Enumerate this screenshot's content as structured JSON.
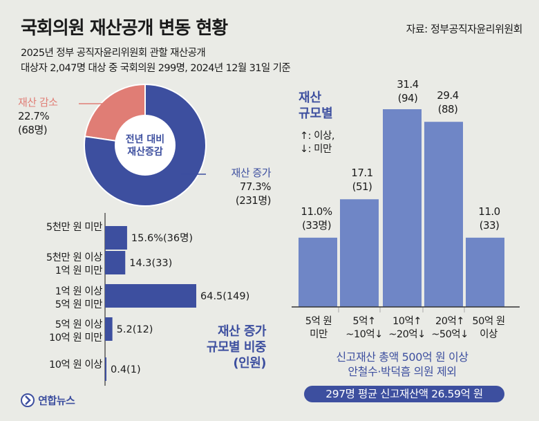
{
  "header": {
    "title": "국회의원 재산공개 변동 현황",
    "source": "자료: 정부공직자윤리위원회",
    "subtitle_line1": "2025년 정부 공직자윤리위원회 관할 재산공개",
    "subtitle_line2": "대상자 2,047명 대상 중 국회의원 299명, 2024년 12월 31일 기준"
  },
  "chart_data": [
    {
      "type": "pie",
      "title": "전년 대비 재산증감",
      "title_line1": "전년 대비",
      "title_line2": "재산증감",
      "slices": [
        {
          "name": "재산 감소",
          "value": 22.7,
          "value_label": "22.7%",
          "count_label": "(68명)",
          "color": "#e07d75"
        },
        {
          "name": "재산 증가",
          "value": 77.3,
          "value_label": "77.3%",
          "count_label": "(231명)",
          "color": "#3d4f9f"
        }
      ]
    },
    {
      "type": "bar",
      "orientation": "horizontal",
      "title": "재산 증가 규모별 비중 (인원)",
      "title_line1": "재산 증가",
      "title_line2": "규모별 비중",
      "title_line3": "(인원)",
      "unit": "%",
      "color": "#3d4f9f",
      "xlim": [
        0,
        64.5
      ],
      "categories": [
        {
          "line1": "5천만 원 미만",
          "line2": ""
        },
        {
          "line1": "5천만 원 이상",
          "line2": "1억 원 미만"
        },
        {
          "line1": "1억 원 이상",
          "line2": "5억 원 미만"
        },
        {
          "line1": "5억 원 이상",
          "line2": "10억 원 미만"
        },
        {
          "line1": "10억 원 이상",
          "line2": ""
        }
      ],
      "values": [
        15.6,
        14.3,
        64.5,
        5.2,
        0.4
      ],
      "value_labels": [
        "15.6%(36명)",
        "14.3(33)",
        "64.5(149)",
        "5.2(12)",
        "0.4(1)"
      ]
    },
    {
      "type": "bar",
      "orientation": "vertical",
      "title": "재산 규모별",
      "title_line1": "재산",
      "title_line2": "규모별",
      "legend_line1": "↑: 이상,",
      "legend_line2": "↓: 미만",
      "unit": "%",
      "color": "#6f86c6",
      "ylim": [
        0,
        31.4
      ],
      "categories": [
        {
          "line1": "5억 원",
          "line2": "미만"
        },
        {
          "line1": "5억↑",
          "line2": "~10억↓"
        },
        {
          "line1": "10억↑",
          "line2": "~20억↓"
        },
        {
          "line1": "20억↑",
          "line2": "~50억↓"
        },
        {
          "line1": "50억 원",
          "line2": "이상"
        }
      ],
      "values": [
        11.0,
        17.1,
        31.4,
        29.4,
        11.0
      ],
      "value_labels": [
        "11.0%",
        "17.1",
        "31.4",
        "29.4",
        "11.0"
      ],
      "count_labels": [
        "(33명)",
        "(51)",
        "(94)",
        "(88)",
        "(33)"
      ],
      "note_line1": "신고재산 총액 500억 원 이상",
      "note_line2": "안철수·박덕흠 의원 제외",
      "average_label": "297명 평균 신고재산액 26.59억 원"
    }
  ],
  "logo": {
    "text": "연합뉴스",
    "color": "#3d4f9f"
  }
}
